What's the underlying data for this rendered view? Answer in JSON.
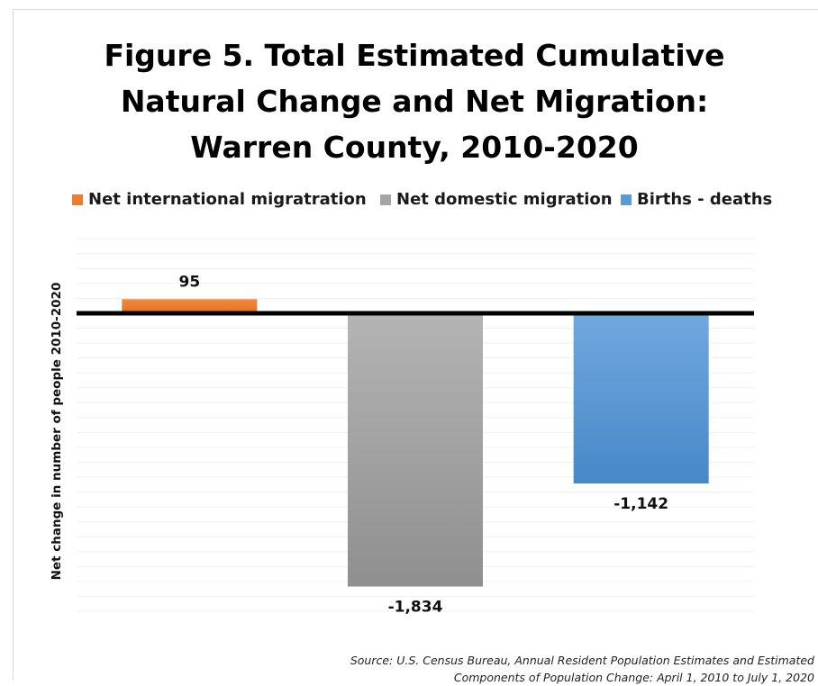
{
  "chart_data": {
    "type": "bar",
    "title": [
      "Figure 5. Total Estimated Cumulative",
      "Natural Change and Net Migration:",
      "Warren County, 2010-2020"
    ],
    "ylabel": "Net change in number of people 2010-2020",
    "legend_position": "top",
    "categories": [
      "Net international migratration",
      "Net domestic migration",
      "Births  - deaths"
    ],
    "values": [
      95,
      -1834,
      -1142
    ],
    "data_labels": [
      "95",
      "-1,834",
      "-1,142"
    ],
    "colors": [
      "#ed7d31",
      "#a5a5a5",
      "#5b9bd5"
    ],
    "ylim": [
      -2000,
      500
    ],
    "grid": true,
    "zero_line": true
  },
  "source": [
    "Source: U.S. Census Bureau, Annual Resident Population Estimates and Estimated",
    "Components of Population Change: April 1, 2010 to July 1, 2020"
  ]
}
